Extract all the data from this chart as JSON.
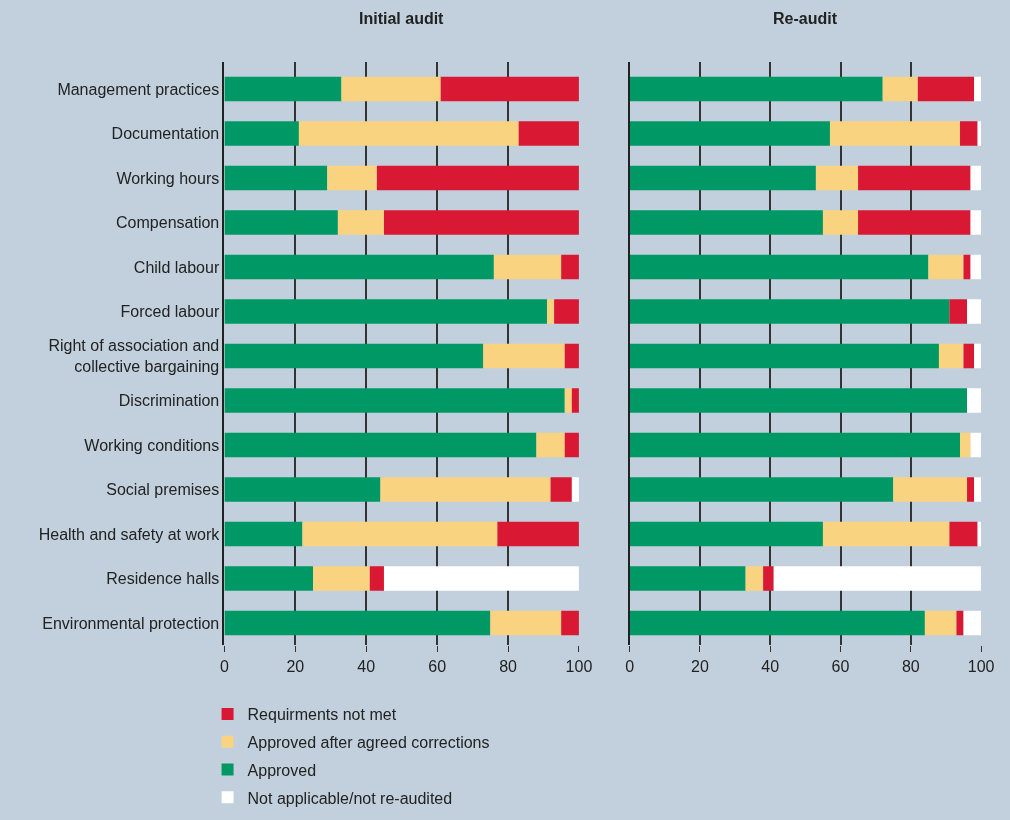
{
  "chart_data": [
    {
      "type": "bar",
      "orientation": "horizontal",
      "stacked": true,
      "title": "Initial audit",
      "categories": [
        "Management practices",
        "Documentation",
        "Working hours",
        "Compensation",
        "Child labour",
        "Forced labour",
        "Right of association and collective bargaining",
        "Discrimination",
        "Working conditions",
        "Social premises",
        "Health and safety at work",
        "Residence halls",
        "Environmental protection"
      ],
      "series": [
        {
          "name": "Approved",
          "color": "#009966",
          "values": [
            33,
            21,
            29,
            32,
            76,
            91,
            73,
            96,
            88,
            44,
            22,
            25,
            75
          ]
        },
        {
          "name": "Approved after agreed corrections",
          "color": "#fad380",
          "values": [
            28,
            62,
            14,
            13,
            19,
            2,
            23,
            2,
            8,
            48,
            55,
            16,
            20
          ]
        },
        {
          "name": "Requirments not met",
          "color": "#d91834",
          "values": [
            39,
            17,
            57,
            55,
            5,
            7,
            4,
            2,
            4,
            6,
            23,
            4,
            5
          ]
        },
        {
          "name": "Not applicable/not re-audited",
          "color": "#ffffff",
          "values": [
            0,
            0,
            0,
            0,
            0,
            0,
            0,
            0,
            0,
            2,
            0,
            55,
            0
          ]
        }
      ],
      "xlim": [
        0,
        100
      ],
      "xticks": [
        0,
        20,
        40,
        60,
        80,
        100
      ],
      "grid": "x",
      "legend": "bottom"
    },
    {
      "type": "bar",
      "orientation": "horizontal",
      "stacked": true,
      "title": "Re-audit",
      "categories": [
        null,
        null,
        null,
        null,
        null,
        null,
        null,
        null,
        null,
        null,
        null,
        null,
        null
      ],
      "series": [
        {
          "color": "#009966",
          "values": [
            72,
            57,
            53,
            55,
            85,
            91,
            88,
            96,
            94,
            75,
            55,
            33,
            84
          ]
        },
        {
          "color": "#fad380",
          "values": [
            10,
            37,
            12,
            10,
            10,
            0,
            7,
            0,
            3,
            21,
            36,
            5,
            9
          ]
        },
        {
          "color": "#d91834",
          "values": [
            16,
            5,
            32,
            32,
            2,
            5,
            3,
            0,
            0,
            2,
            8,
            3,
            2
          ]
        },
        {
          "color": "#ffffff",
          "values": [
            2,
            1,
            3,
            3,
            3,
            4,
            2,
            4,
            3,
            2,
            1,
            59,
            5
          ]
        }
      ],
      "xlim": [
        0,
        100
      ],
      "xticks": [
        0,
        20,
        40,
        60,
        80,
        100
      ],
      "grid": "x",
      "tick_labels": "x"
    }
  ]
}
